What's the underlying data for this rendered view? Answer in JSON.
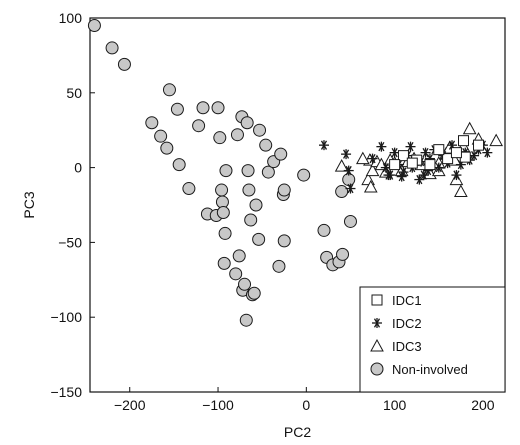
{
  "chart_data": {
    "type": "scatter",
    "title": "",
    "xlabel": "PC2",
    "ylabel": "PC3",
    "xlim": [
      -245,
      225
    ],
    "ylim": [
      -150,
      100
    ],
    "x_ticks": [
      -200,
      -100,
      0,
      100,
      200
    ],
    "y_ticks": [
      -150,
      -100,
      -50,
      0,
      50,
      100
    ],
    "x_tick_labels": [
      "−200",
      "−100",
      "0",
      "100",
      "200"
    ],
    "y_tick_labels": [
      "−150",
      "−100",
      "−50",
      "0",
      "50",
      "100"
    ],
    "grid": false,
    "legend_position": "bottom-right",
    "colors": {
      "non_involved_fill": "#c8c8c8",
      "marker_stroke": "#1a1a1a",
      "open_fill": "#ffffff"
    },
    "series": [
      {
        "name": "IDC1",
        "marker": "square",
        "points": [
          [
            178,
            18
          ],
          [
            180,
            7
          ],
          [
            125,
            5
          ],
          [
            140,
            2
          ],
          [
            160,
            6
          ],
          [
            110,
            8
          ],
          [
            150,
            12
          ],
          [
            195,
            15
          ],
          [
            120,
            3
          ],
          [
            170,
            10
          ],
          [
            100,
            2
          ]
        ]
      },
      {
        "name": "IDC2",
        "marker": "asterisk",
        "points": [
          [
            20,
            15
          ],
          [
            45,
            9
          ],
          [
            48,
            -2
          ],
          [
            50,
            -14
          ],
          [
            75,
            6
          ],
          [
            85,
            14
          ],
          [
            90,
            0
          ],
          [
            95,
            -5
          ],
          [
            100,
            10
          ],
          [
            105,
            2
          ],
          [
            110,
            -3
          ],
          [
            115,
            8
          ],
          [
            118,
            14
          ],
          [
            120,
            0
          ],
          [
            125,
            5
          ],
          [
            128,
            -8
          ],
          [
            130,
            4
          ],
          [
            135,
            10
          ],
          [
            138,
            -2
          ],
          [
            140,
            6
          ],
          [
            145,
            12
          ],
          [
            150,
            0
          ],
          [
            155,
            8
          ],
          [
            160,
            3
          ],
          [
            165,
            15
          ],
          [
            170,
            -5
          ],
          [
            175,
            2
          ],
          [
            180,
            10
          ],
          [
            185,
            5
          ],
          [
            190,
            8
          ],
          [
            195,
            12
          ],
          [
            200,
            15
          ],
          [
            205,
            10
          ],
          [
            93,
            -5
          ],
          [
            108,
            -6
          ],
          [
            133,
            -5
          ]
        ]
      },
      {
        "name": "IDC3",
        "marker": "triangle",
        "points": [
          [
            40,
            1
          ],
          [
            70,
            -8
          ],
          [
            72,
            5
          ],
          [
            75,
            -2
          ],
          [
            80,
            4
          ],
          [
            85,
            2
          ],
          [
            90,
            -3
          ],
          [
            95,
            5
          ],
          [
            100,
            3
          ],
          [
            108,
            -2
          ],
          [
            115,
            4
          ],
          [
            122,
            6
          ],
          [
            130,
            2
          ],
          [
            140,
            -4
          ],
          [
            150,
            3
          ],
          [
            158,
            9
          ],
          [
            162,
            13
          ],
          [
            170,
            -8
          ],
          [
            178,
            14
          ],
          [
            185,
            26
          ],
          [
            195,
            19
          ],
          [
            215,
            18
          ],
          [
            168,
            5
          ],
          [
            175,
            -16
          ],
          [
            73,
            -13
          ],
          [
            64,
            6
          ],
          [
            150,
            -2
          ]
        ]
      },
      {
        "name": "Non-involved",
        "marker": "circle",
        "points": [
          [
            -240,
            95
          ],
          [
            -220,
            80
          ],
          [
            -206,
            69
          ],
          [
            -175,
            30
          ],
          [
            -165,
            21
          ],
          [
            -158,
            13
          ],
          [
            -155,
            52
          ],
          [
            -146,
            39
          ],
          [
            -144,
            2
          ],
          [
            -133,
            -14
          ],
          [
            -122,
            28
          ],
          [
            -117,
            40
          ],
          [
            -112,
            -31
          ],
          [
            -102,
            -32
          ],
          [
            -100,
            40
          ],
          [
            -98,
            20
          ],
          [
            -96,
            -15
          ],
          [
            -95,
            -23
          ],
          [
            -94,
            -30
          ],
          [
            -93,
            -64
          ],
          [
            -92,
            -44
          ],
          [
            -91,
            -2
          ],
          [
            -80,
            -71
          ],
          [
            -78,
            22
          ],
          [
            -76,
            -59
          ],
          [
            -73,
            34
          ],
          [
            -72,
            -82
          ],
          [
            -70,
            -78
          ],
          [
            -68,
            -102
          ],
          [
            -67,
            30
          ],
          [
            -66,
            -2
          ],
          [
            -65,
            -15
          ],
          [
            -63,
            -35
          ],
          [
            -61,
            -85
          ],
          [
            -59,
            -84
          ],
          [
            -57,
            -25
          ],
          [
            -54,
            -48
          ],
          [
            -53,
            25
          ],
          [
            -46,
            15
          ],
          [
            -43,
            -3
          ],
          [
            -37,
            4
          ],
          [
            -31,
            -66
          ],
          [
            -29,
            9
          ],
          [
            -26,
            -18
          ],
          [
            -25,
            -49
          ],
          [
            -3,
            -5
          ],
          [
            20,
            -42
          ],
          [
            23,
            -60
          ],
          [
            30,
            -65
          ],
          [
            37,
            -63
          ],
          [
            40,
            -16
          ],
          [
            41,
            -58
          ],
          [
            48,
            -8
          ],
          [
            50,
            -36
          ],
          [
            -25,
            -15
          ]
        ]
      }
    ]
  }
}
